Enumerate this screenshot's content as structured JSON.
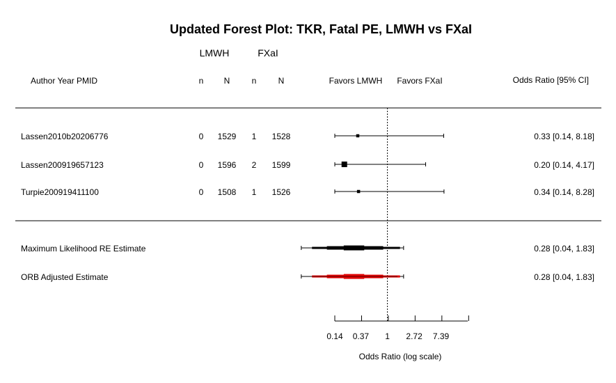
{
  "chart_data": {
    "type": "forest",
    "title": "Updated Forest Plot: TKR, Fatal PE, LMWH vs FXaI",
    "group_headers": [
      "LMWH",
      "FXaI"
    ],
    "column_headers": {
      "study": "Author Year PMID",
      "n1": "n",
      "N1": "N",
      "n2": "n",
      "N2": "N",
      "favors_left": "Favors LMWH",
      "favors_right": "Favors FXaI",
      "effect": "Odds Ratio [95% CI]"
    },
    "studies": [
      {
        "label": "Lassen2010b20206776",
        "n1": "0",
        "N1": "1529",
        "n2": "1",
        "N2": "1528",
        "or": 0.33,
        "lo": 0.14,
        "hi": 8.18,
        "ci_text": "0.33 [0.14, 8.18]",
        "weight": 0.3
      },
      {
        "label": "Lassen200919657123",
        "n1": "0",
        "N1": "1596",
        "n2": "2",
        "N2": "1599",
        "or": 0.2,
        "lo": 0.14,
        "hi": 4.17,
        "ci_text": "0.20 [0.14, 4.17]",
        "weight": 1.0
      },
      {
        "label": "Turpie200919411100",
        "n1": "0",
        "N1": "1508",
        "n2": "1",
        "N2": "1526",
        "or": 0.34,
        "lo": 0.14,
        "hi": 8.28,
        "ci_text": "0.34 [0.14, 8.28]",
        "weight": 0.3
      }
    ],
    "summaries": [
      {
        "label": "Maximum Likelihood RE Estimate",
        "est": 0.28,
        "lo": 0.04,
        "hi": 1.83,
        "ci_text": "0.28 [0.04, 1.83]",
        "color": "#000000"
      },
      {
        "label": "ORB Adjusted Estimate",
        "est": 0.28,
        "lo": 0.04,
        "hi": 1.83,
        "ci_text": "0.28 [0.04, 1.83]",
        "color": "#e00000"
      }
    ],
    "x_ticks": [
      0.14,
      0.37,
      1,
      2.72,
      7.39
    ],
    "x_tick_labels": [
      "0.14",
      "0.37",
      "1",
      "2.72",
      "7.39"
    ],
    "xlim": [
      0.14,
      20.09
    ],
    "x_scale": "log",
    "reference_line": 1,
    "xlabel": "Odds Ratio (log scale)"
  }
}
